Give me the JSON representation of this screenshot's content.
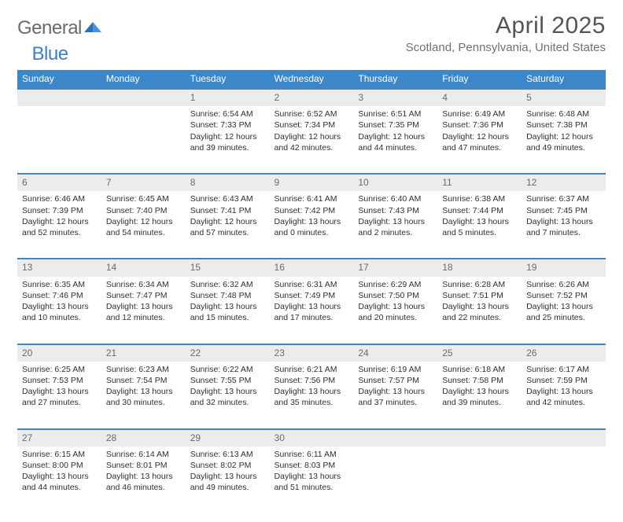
{
  "brand": {
    "part1": "General",
    "part2": "Blue"
  },
  "title": "April 2025",
  "subtitle": "Scotland, Pennsylvania, United States",
  "columns": [
    "Sunday",
    "Monday",
    "Tuesday",
    "Wednesday",
    "Thursday",
    "Friday",
    "Saturday"
  ],
  "colors": {
    "header_bg": "#3b87c8",
    "header_fg": "#ffffff",
    "daynum_bg": "#ececec",
    "daynum_fg": "#6b6b6b",
    "rule": "#3b87c8",
    "title_fg": "#555558",
    "subtitle_fg": "#707075"
  },
  "weeks": [
    [
      null,
      null,
      {
        "n": "1",
        "sunrise": "6:54 AM",
        "sunset": "7:33 PM",
        "day_h": "12",
        "day_m": "39"
      },
      {
        "n": "2",
        "sunrise": "6:52 AM",
        "sunset": "7:34 PM",
        "day_h": "12",
        "day_m": "42"
      },
      {
        "n": "3",
        "sunrise": "6:51 AM",
        "sunset": "7:35 PM",
        "day_h": "12",
        "day_m": "44"
      },
      {
        "n": "4",
        "sunrise": "6:49 AM",
        "sunset": "7:36 PM",
        "day_h": "12",
        "day_m": "47"
      },
      {
        "n": "5",
        "sunrise": "6:48 AM",
        "sunset": "7:38 PM",
        "day_h": "12",
        "day_m": "49"
      }
    ],
    [
      {
        "n": "6",
        "sunrise": "6:46 AM",
        "sunset": "7:39 PM",
        "day_h": "12",
        "day_m": "52"
      },
      {
        "n": "7",
        "sunrise": "6:45 AM",
        "sunset": "7:40 PM",
        "day_h": "12",
        "day_m": "54"
      },
      {
        "n": "8",
        "sunrise": "6:43 AM",
        "sunset": "7:41 PM",
        "day_h": "12",
        "day_m": "57"
      },
      {
        "n": "9",
        "sunrise": "6:41 AM",
        "sunset": "7:42 PM",
        "day_h": "13",
        "day_m": "0"
      },
      {
        "n": "10",
        "sunrise": "6:40 AM",
        "sunset": "7:43 PM",
        "day_h": "13",
        "day_m": "2"
      },
      {
        "n": "11",
        "sunrise": "6:38 AM",
        "sunset": "7:44 PM",
        "day_h": "13",
        "day_m": "5"
      },
      {
        "n": "12",
        "sunrise": "6:37 AM",
        "sunset": "7:45 PM",
        "day_h": "13",
        "day_m": "7"
      }
    ],
    [
      {
        "n": "13",
        "sunrise": "6:35 AM",
        "sunset": "7:46 PM",
        "day_h": "13",
        "day_m": "10"
      },
      {
        "n": "14",
        "sunrise": "6:34 AM",
        "sunset": "7:47 PM",
        "day_h": "13",
        "day_m": "12"
      },
      {
        "n": "15",
        "sunrise": "6:32 AM",
        "sunset": "7:48 PM",
        "day_h": "13",
        "day_m": "15"
      },
      {
        "n": "16",
        "sunrise": "6:31 AM",
        "sunset": "7:49 PM",
        "day_h": "13",
        "day_m": "17"
      },
      {
        "n": "17",
        "sunrise": "6:29 AM",
        "sunset": "7:50 PM",
        "day_h": "13",
        "day_m": "20"
      },
      {
        "n": "18",
        "sunrise": "6:28 AM",
        "sunset": "7:51 PM",
        "day_h": "13",
        "day_m": "22"
      },
      {
        "n": "19",
        "sunrise": "6:26 AM",
        "sunset": "7:52 PM",
        "day_h": "13",
        "day_m": "25"
      }
    ],
    [
      {
        "n": "20",
        "sunrise": "6:25 AM",
        "sunset": "7:53 PM",
        "day_h": "13",
        "day_m": "27"
      },
      {
        "n": "21",
        "sunrise": "6:23 AM",
        "sunset": "7:54 PM",
        "day_h": "13",
        "day_m": "30"
      },
      {
        "n": "22",
        "sunrise": "6:22 AM",
        "sunset": "7:55 PM",
        "day_h": "13",
        "day_m": "32"
      },
      {
        "n": "23",
        "sunrise": "6:21 AM",
        "sunset": "7:56 PM",
        "day_h": "13",
        "day_m": "35"
      },
      {
        "n": "24",
        "sunrise": "6:19 AM",
        "sunset": "7:57 PM",
        "day_h": "13",
        "day_m": "37"
      },
      {
        "n": "25",
        "sunrise": "6:18 AM",
        "sunset": "7:58 PM",
        "day_h": "13",
        "day_m": "39"
      },
      {
        "n": "26",
        "sunrise": "6:17 AM",
        "sunset": "7:59 PM",
        "day_h": "13",
        "day_m": "42"
      }
    ],
    [
      {
        "n": "27",
        "sunrise": "6:15 AM",
        "sunset": "8:00 PM",
        "day_h": "13",
        "day_m": "44"
      },
      {
        "n": "28",
        "sunrise": "6:14 AM",
        "sunset": "8:01 PM",
        "day_h": "13",
        "day_m": "46"
      },
      {
        "n": "29",
        "sunrise": "6:13 AM",
        "sunset": "8:02 PM",
        "day_h": "13",
        "day_m": "49"
      },
      {
        "n": "30",
        "sunrise": "6:11 AM",
        "sunset": "8:03 PM",
        "day_h": "13",
        "day_m": "51"
      },
      null,
      null,
      null
    ]
  ],
  "labels": {
    "sunrise": "Sunrise:",
    "sunset": "Sunset:",
    "daylight_a": "Daylight:",
    "hours": "hours",
    "and": "and",
    "minutes": "minutes."
  }
}
